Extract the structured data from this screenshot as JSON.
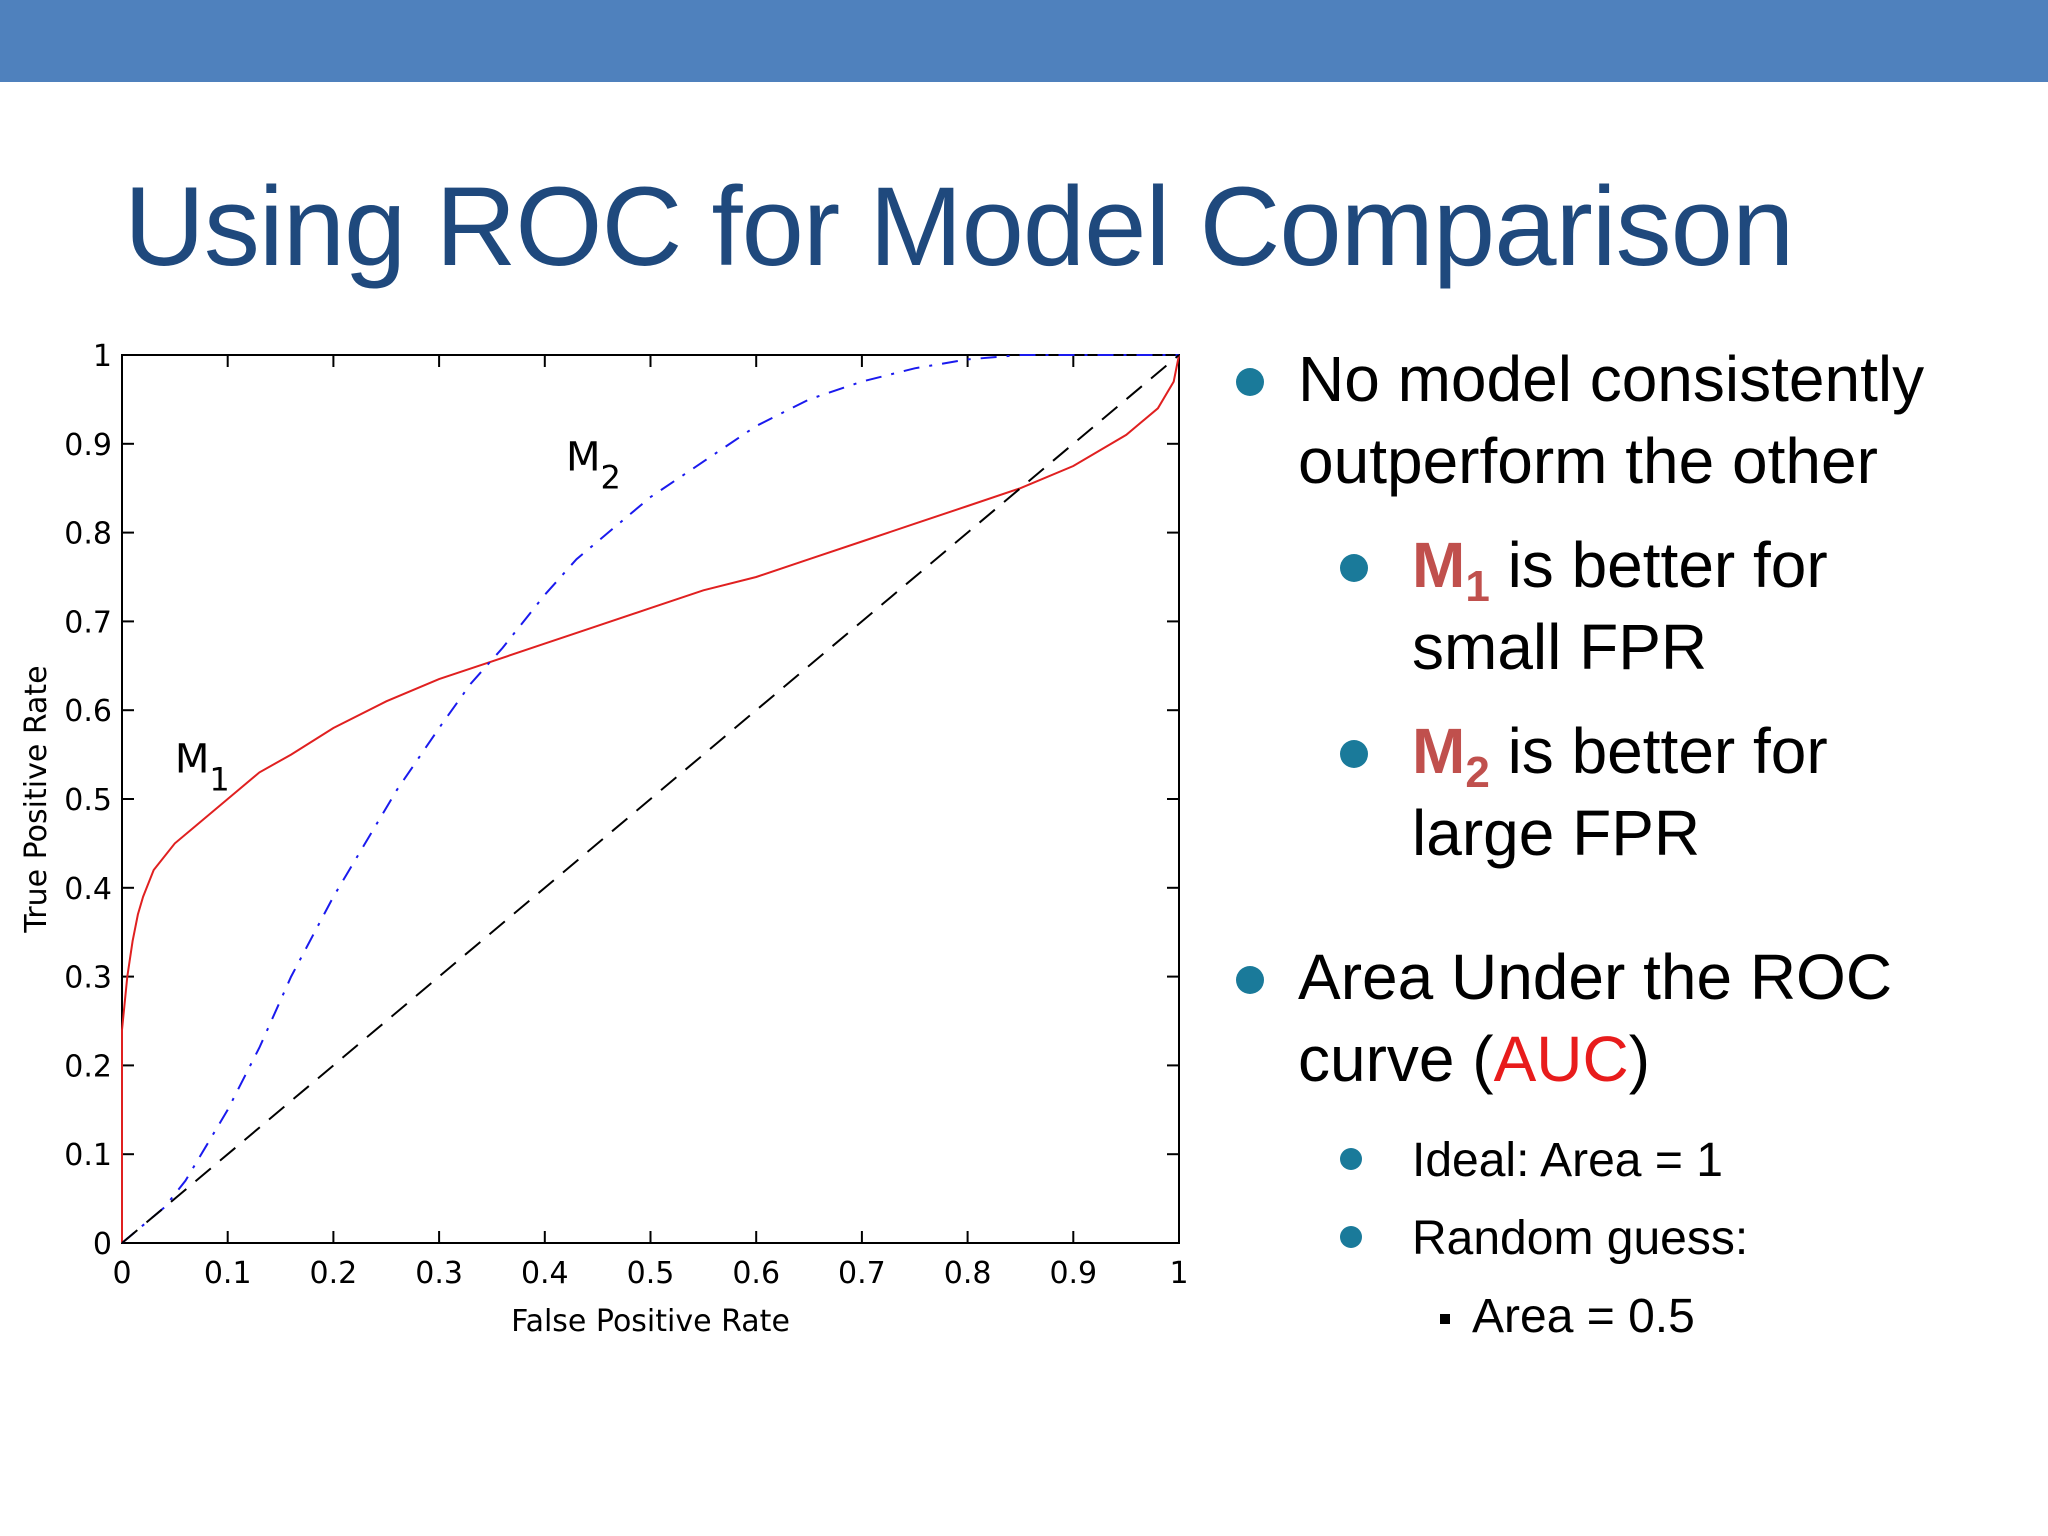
{
  "slide": {
    "title": "Using ROC for Model Comparison"
  },
  "bullets": {
    "b1_line1": "No model consistently",
    "b1_line2": "outperform the other",
    "m1_letter": "M",
    "m1_sub": "1",
    "m1_text": " is better for",
    "m1_line2": "small FPR",
    "m2_letter": "M",
    "m2_sub": "2",
    "m2_text": " is better for",
    "m2_line2": "large FPR",
    "auc_line1": "Area Under the ROC",
    "auc_pre": "curve (",
    "auc_word": "AUC",
    "auc_post": ")",
    "ideal": "Ideal:  Area = 1",
    "random": "Random guess:",
    "random_area": "Area = 0.5"
  },
  "colors": {
    "top_bar": "#4f81bd",
    "title": "#1f497d",
    "bullet_dot": "#1a7a9a",
    "model_label": "#c0504d",
    "auc": "#e81c1c",
    "m1_curve": "#e02020",
    "m2_curve": "#1a1aee",
    "diagonal": "#000000"
  },
  "chart_data": {
    "type": "line",
    "xlabel": "False Positive Rate",
    "ylabel": "True Positive Rate",
    "xlim": [
      0,
      1
    ],
    "ylim": [
      0,
      1
    ],
    "xticks": [
      "0",
      "0.1",
      "0.2",
      "0.3",
      "0.4",
      "0.5",
      "0.6",
      "0.7",
      "0.8",
      "0.9",
      "1"
    ],
    "yticks": [
      "0",
      "0.1",
      "0.2",
      "0.3",
      "0.4",
      "0.5",
      "0.6",
      "0.7",
      "0.8",
      "0.9",
      "1"
    ],
    "annotations": [
      {
        "text": "M",
        "sub": "1",
        "series": "M1",
        "at": [
          0.05,
          0.53
        ]
      },
      {
        "text": "M",
        "sub": "2",
        "series": "M2",
        "at": [
          0.42,
          0.87
        ]
      }
    ],
    "series": [
      {
        "name": "M1",
        "style": "solid",
        "color": "#e02020",
        "x": [
          0,
          0,
          0.005,
          0.01,
          0.015,
          0.02,
          0.03,
          0.05,
          0.07,
          0.1,
          0.13,
          0.16,
          0.2,
          0.25,
          0.3,
          0.35,
          0.4,
          0.45,
          0.5,
          0.55,
          0.6,
          0.65,
          0.7,
          0.75,
          0.8,
          0.85,
          0.9,
          0.95,
          0.98,
          0.995,
          1
        ],
        "y": [
          0,
          0.24,
          0.3,
          0.34,
          0.37,
          0.39,
          0.42,
          0.45,
          0.47,
          0.5,
          0.53,
          0.55,
          0.58,
          0.61,
          0.635,
          0.655,
          0.675,
          0.695,
          0.715,
          0.735,
          0.75,
          0.77,
          0.79,
          0.81,
          0.83,
          0.85,
          0.875,
          0.91,
          0.94,
          0.97,
          1
        ]
      },
      {
        "name": "M2",
        "style": "dashdot",
        "color": "#1a1aee",
        "x": [
          0,
          0.02,
          0.04,
          0.06,
          0.08,
          0.1,
          0.13,
          0.16,
          0.2,
          0.23,
          0.26,
          0.3,
          0.33,
          0.36,
          0.4,
          0.43,
          0.47,
          0.5,
          0.55,
          0.6,
          0.65,
          0.7,
          0.75,
          0.8,
          0.85,
          0.9,
          0.95,
          1
        ],
        "y": [
          0,
          0.02,
          0.04,
          0.07,
          0.11,
          0.15,
          0.22,
          0.3,
          0.39,
          0.45,
          0.51,
          0.58,
          0.63,
          0.67,
          0.73,
          0.77,
          0.81,
          0.84,
          0.88,
          0.92,
          0.95,
          0.97,
          0.985,
          0.995,
          1,
          1,
          1,
          1
        ]
      },
      {
        "name": "Random",
        "style": "dashed",
        "color": "#000000",
        "x": [
          0,
          1
        ],
        "y": [
          0,
          1
        ]
      }
    ]
  }
}
